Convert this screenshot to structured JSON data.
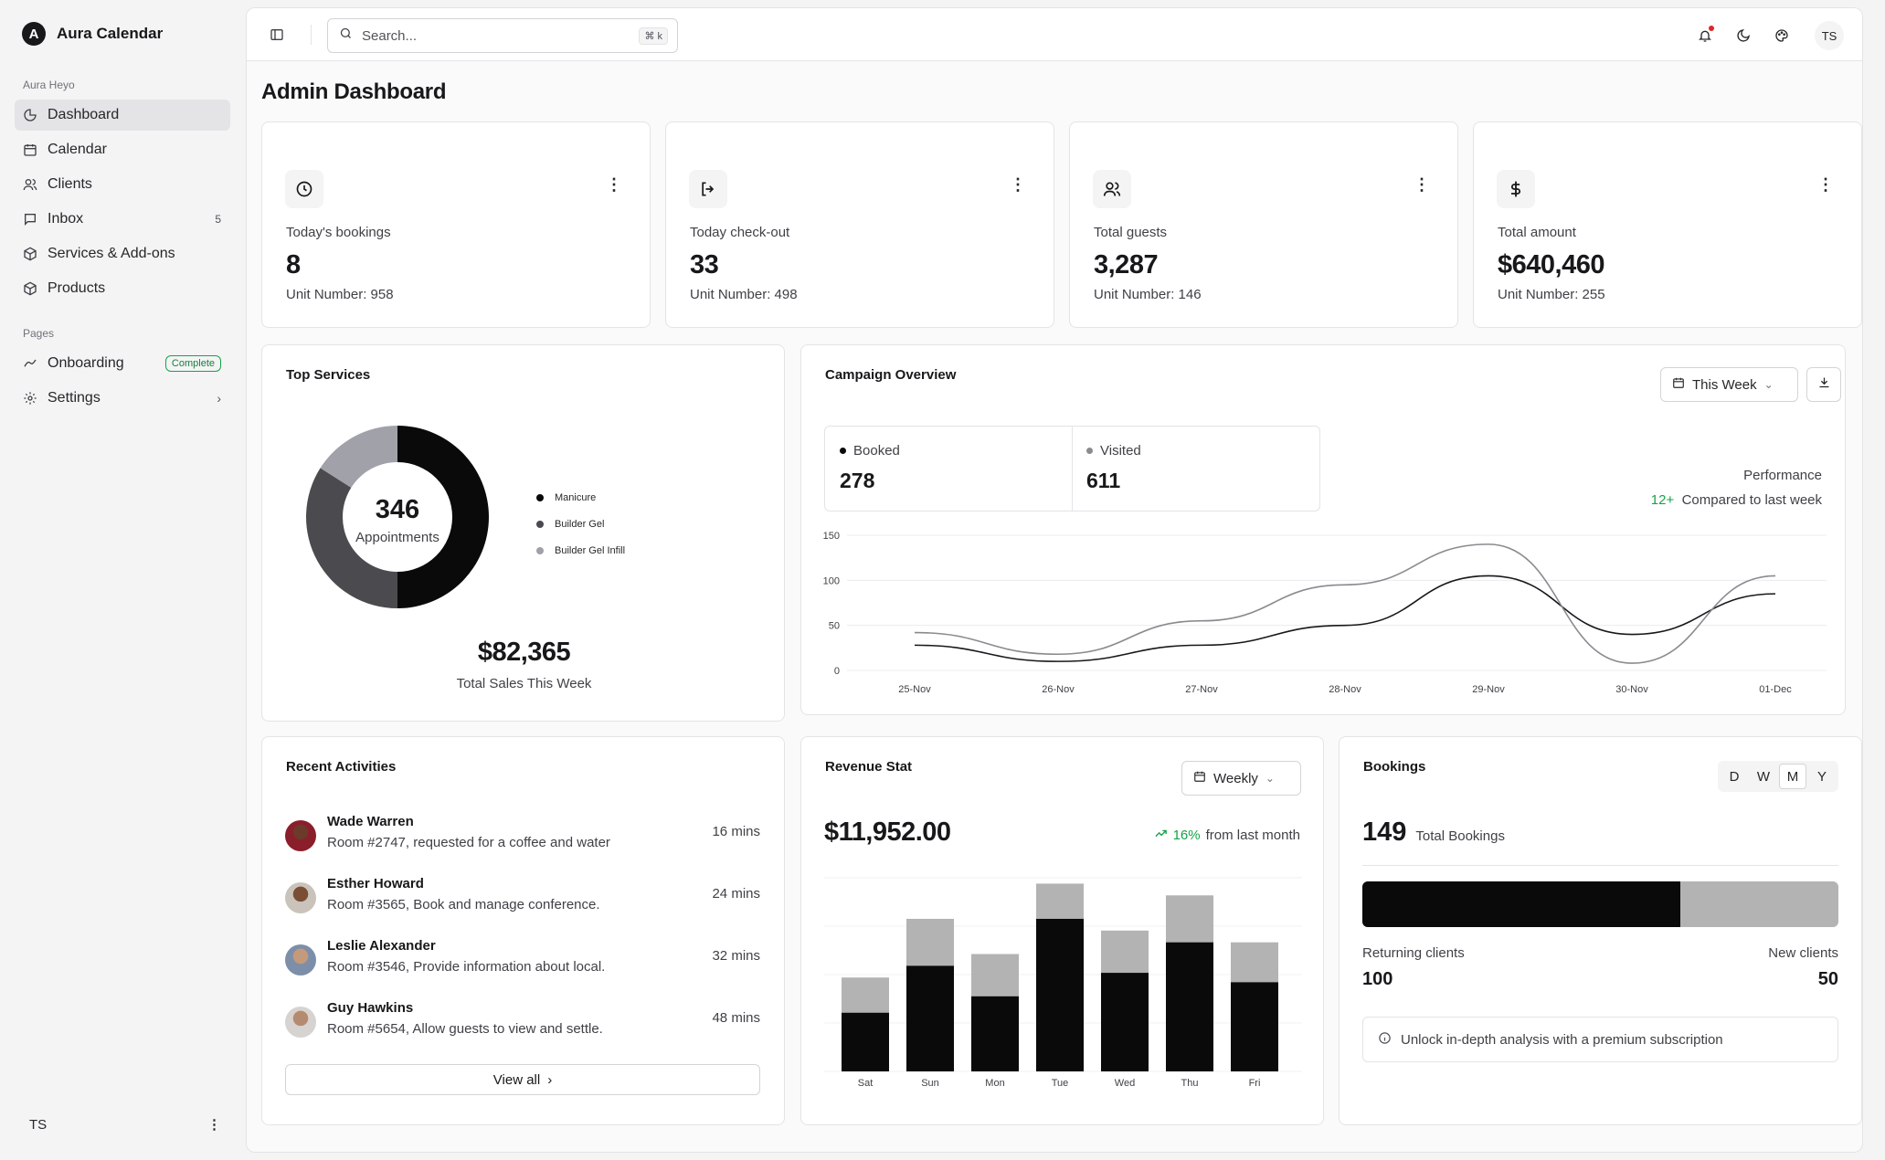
{
  "app": {
    "name": "Aura Calendar",
    "logo_letter": "A"
  },
  "sidebar": {
    "group1_label": "Aura Heyo",
    "items": [
      {
        "label": "Dashboard",
        "icon": "pie-chart-icon",
        "active": true
      },
      {
        "label": "Calendar",
        "icon": "calendar-icon"
      },
      {
        "label": "Clients",
        "icon": "users-icon"
      },
      {
        "label": "Inbox",
        "icon": "message-icon",
        "count": "5"
      },
      {
        "label": "Services & Add-ons",
        "icon": "package-icon"
      },
      {
        "label": "Products",
        "icon": "box-icon"
      }
    ],
    "group2_label": "Pages",
    "pages": [
      {
        "label": "Onboarding",
        "icon": "trending-icon",
        "badge": "Complete"
      },
      {
        "label": "Settings",
        "icon": "gear-icon"
      }
    ],
    "footer_user": "TS"
  },
  "topbar": {
    "search_placeholder": "Search...",
    "shortcut": "⌘ k",
    "avatar": "TS"
  },
  "page_title": "Admin Dashboard",
  "stats": [
    {
      "label": "Today's bookings",
      "value": "8",
      "sub": "Unit Number: 958",
      "icon": "clock-icon"
    },
    {
      "label": "Today check-out",
      "value": "33",
      "sub": "Unit Number: 498",
      "icon": "logout-icon"
    },
    {
      "label": "Total guests",
      "value": "3,287",
      "sub": "Unit Number: 146",
      "icon": "users-icon"
    },
    {
      "label": "Total amount",
      "value": "$640,460",
      "sub": "Unit Number: 255",
      "icon": "dollar-icon"
    }
  ],
  "top_services": {
    "title": "Top Services",
    "center_value": "346",
    "center_label": "Appointments",
    "total": "$82,365",
    "total_label": "Total Sales This Week",
    "legend": [
      "Manicure",
      "Builder Gel",
      "Builder Gel Infill"
    ],
    "colors": [
      "#0a0a0a",
      "#4b4b4f",
      "#a1a1aa"
    ]
  },
  "campaign": {
    "title": "Campaign Overview",
    "range": "This Week",
    "booked_label": "Booked",
    "booked_value": "278",
    "visited_label": "Visited",
    "visited_value": "611",
    "performance_label": "Performance",
    "performance_delta": "12+",
    "performance_text": "Compared to last week"
  },
  "recent": {
    "title": "Recent Activities",
    "items": [
      {
        "name": "Wade Warren",
        "desc": "Room #2747, requested for a coffee and water",
        "time": "16 mins"
      },
      {
        "name": "Esther Howard",
        "desc": "Room #3565, Book and manage conference.",
        "time": "24 mins"
      },
      {
        "name": "Leslie Alexander",
        "desc": "Room #3546, Provide information about local.",
        "time": "32 mins"
      },
      {
        "name": "Guy Hawkins",
        "desc": "Room #5654, Allow guests to view and settle.",
        "time": "48 mins"
      }
    ],
    "view_all": "View all"
  },
  "revenue": {
    "title": "Revenue Stat",
    "range": "Weekly",
    "amount": "$11,952.00",
    "delta": "16%",
    "delta_text": "from last month"
  },
  "bookings": {
    "title": "Bookings",
    "tabs": [
      "D",
      "W",
      "M",
      "Y"
    ],
    "active_tab": "M",
    "total": "149",
    "total_label": "Total Bookings",
    "returning_label": "Returning clients",
    "returning_value": "100",
    "new_label": "New clients",
    "new_value": "50",
    "returning_share": 0.667,
    "promo": "Unlock in-depth analysis with a premium subscription"
  },
  "chart_data": [
    {
      "type": "pie",
      "title": "Top Services",
      "categories": [
        "Manicure",
        "Builder Gel",
        "Builder Gel Infill"
      ],
      "values": [
        50,
        34,
        16
      ]
    },
    {
      "type": "line",
      "title": "Campaign Overview",
      "x": [
        "25-Nov",
        "26-Nov",
        "27-Nov",
        "28-Nov",
        "29-Nov",
        "30-Nov",
        "01-Dec"
      ],
      "ylim": [
        0,
        150
      ],
      "yticks": [
        0,
        50,
        100,
        150
      ],
      "grid": true,
      "series": [
        {
          "name": "Booked",
          "values": [
            28,
            10,
            28,
            50,
            105,
            40,
            85
          ]
        },
        {
          "name": "Visited",
          "values": [
            42,
            18,
            55,
            95,
            140,
            8,
            105
          ]
        }
      ]
    },
    {
      "type": "bar",
      "title": "Revenue Stat",
      "stacked": true,
      "categories": [
        "Sat",
        "Sun",
        "Mon",
        "Tue",
        "Wed",
        "Thu",
        "Fri"
      ],
      "ylim": [
        0,
        165
      ],
      "series": [
        {
          "values": [
            50,
            90,
            64,
            130,
            84,
            110,
            76
          ]
        },
        {
          "values": [
            30,
            40,
            36,
            30,
            36,
            40,
            34
          ]
        }
      ]
    }
  ]
}
